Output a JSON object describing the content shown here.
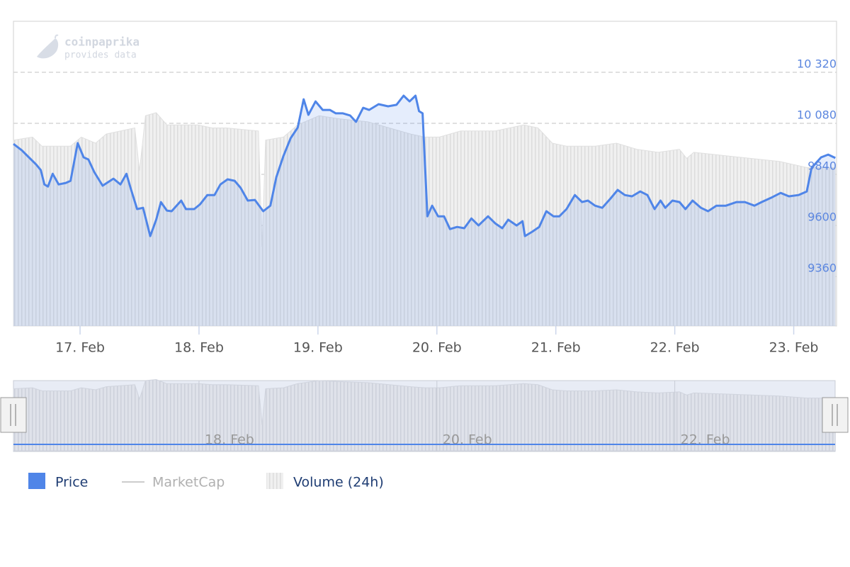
{
  "chart_data": {
    "type": "line",
    "watermark": {
      "title": "coinpaprika",
      "subtitle": "provides data"
    },
    "x": [
      16.44,
      16.51,
      16.57,
      16.63,
      16.67,
      16.7,
      16.73,
      16.77,
      16.82,
      16.88,
      16.92,
      16.98,
      17.03,
      17.07,
      17.12,
      17.19,
      17.28,
      17.34,
      17.39,
      17.43,
      17.48,
      17.53,
      17.59,
      17.64,
      17.68,
      17.73,
      17.77,
      17.85,
      17.89,
      17.96,
      18.01,
      18.07,
      18.13,
      18.18,
      18.24,
      18.3,
      18.35,
      18.41,
      18.47,
      18.54,
      18.6,
      18.65,
      18.71,
      18.77,
      18.83,
      18.88,
      18.92,
      18.98,
      19.04,
      19.1,
      19.15,
      19.21,
      19.27,
      19.32,
      19.38,
      19.43,
      19.51,
      19.59,
      19.66,
      19.72,
      19.77,
      19.82,
      19.85,
      19.88,
      19.92,
      19.96,
      20.01,
      20.06,
      20.11,
      20.17,
      20.23,
      20.29,
      20.35,
      20.43,
      20.49,
      20.55,
      20.6,
      20.67,
      20.72,
      20.74,
      20.8,
      20.86,
      20.92,
      20.98,
      21.03,
      21.09,
      21.16,
      21.22,
      21.27,
      21.33,
      21.39,
      21.46,
      21.52,
      21.58,
      21.64,
      21.71,
      21.77,
      21.83,
      21.88,
      21.92,
      21.98,
      22.04,
      22.09,
      22.15,
      22.22,
      22.28,
      22.35,
      22.43,
      22.52,
      22.59,
      22.67,
      22.73,
      22.82,
      22.89,
      22.96,
      23.04,
      23.11,
      23.15,
      23.23,
      23.29,
      23.35
    ],
    "xlim": [
      16.44,
      23.36
    ],
    "xticks": [
      {
        "value": 17,
        "label": "17. Feb"
      },
      {
        "value": 18,
        "label": "18. Feb"
      },
      {
        "value": 19,
        "label": "19. Feb"
      },
      {
        "value": 20,
        "label": "20. Feb"
      },
      {
        "value": 21,
        "label": "21. Feb"
      },
      {
        "value": 22,
        "label": "22. Feb"
      },
      {
        "value": 23,
        "label": "23. Feb"
      }
    ],
    "ylim": [
      9127,
      10560
    ],
    "yticks": [
      9360,
      9600,
      9840,
      {
        "value": 10080,
        "label": "10 080"
      },
      {
        "value": 10320,
        "label": "10 320"
      }
    ],
    "y2lim": [
      0,
      100
    ],
    "grid": true,
    "series": [
      {
        "name": "Price",
        "color": "#4f85e8",
        "values": [
          9983,
          9953,
          9920,
          9887,
          9860,
          9793,
          9783,
          9843,
          9793,
          9800,
          9810,
          9987,
          9920,
          9910,
          9850,
          9787,
          9820,
          9793,
          9843,
          9767,
          9677,
          9683,
          9550,
          9627,
          9710,
          9670,
          9667,
          9717,
          9677,
          9677,
          9700,
          9743,
          9743,
          9793,
          9817,
          9810,
          9777,
          9717,
          9720,
          9667,
          9693,
          9827,
          9927,
          10010,
          10060,
          10193,
          10120,
          10183,
          10143,
          10143,
          10127,
          10127,
          10117,
          10087,
          10153,
          10143,
          10170,
          10160,
          10167,
          10210,
          10183,
          10210,
          10137,
          10127,
          9643,
          9693,
          9643,
          9643,
          9583,
          9593,
          9587,
          9633,
          9600,
          9643,
          9610,
          9587,
          9627,
          9600,
          9620,
          9550,
          9570,
          9593,
          9667,
          9643,
          9643,
          9677,
          9743,
          9710,
          9717,
          9693,
          9683,
          9727,
          9767,
          9743,
          9737,
          9760,
          9743,
          9677,
          9717,
          9683,
          9717,
          9710,
          9677,
          9717,
          9683,
          9667,
          9693,
          9693,
          9710,
          9710,
          9693,
          9710,
          9733,
          9753,
          9737,
          9743,
          9760,
          9870,
          9920,
          9933,
          9917
        ]
      },
      {
        "name": "MarketCap",
        "color": "#cccccc",
        "visible": false
      },
      {
        "name": "Volume (24h)",
        "color": "#e4e4e4",
        "axis": "y2",
        "x": [
          16.44,
          16.6,
          16.68,
          16.92,
          17.01,
          17.13,
          17.22,
          17.46,
          17.5,
          17.55,
          17.64,
          17.73,
          17.99,
          18.11,
          18.23,
          18.5,
          18.53,
          18.56,
          18.71,
          18.83,
          19.01,
          19.18,
          19.42,
          19.6,
          19.78,
          19.9,
          20.02,
          20.2,
          20.49,
          20.73,
          20.85,
          20.97,
          21.09,
          21.33,
          21.51,
          21.68,
          21.86,
          22.04,
          22.1,
          22.16,
          22.4,
          22.64,
          22.88,
          23.11,
          23.35
        ],
        "values": [
          61,
          62,
          59,
          59,
          62,
          60,
          63,
          65,
          51,
          69,
          70,
          66,
          66,
          65,
          65,
          64,
          26,
          61,
          62,
          66,
          69,
          68,
          67,
          65,
          63,
          62,
          62,
          64,
          64,
          66,
          65,
          60,
          59,
          59,
          60,
          58,
          57,
          58,
          55,
          57,
          56,
          55,
          54,
          52,
          52
        ]
      }
    ],
    "navigator": {
      "xticks": [
        {
          "value": 18,
          "label": "18. Feb"
        },
        {
          "value": 20,
          "label": "20. Feb"
        },
        {
          "value": 22,
          "label": "22. Feb"
        }
      ]
    }
  }
}
